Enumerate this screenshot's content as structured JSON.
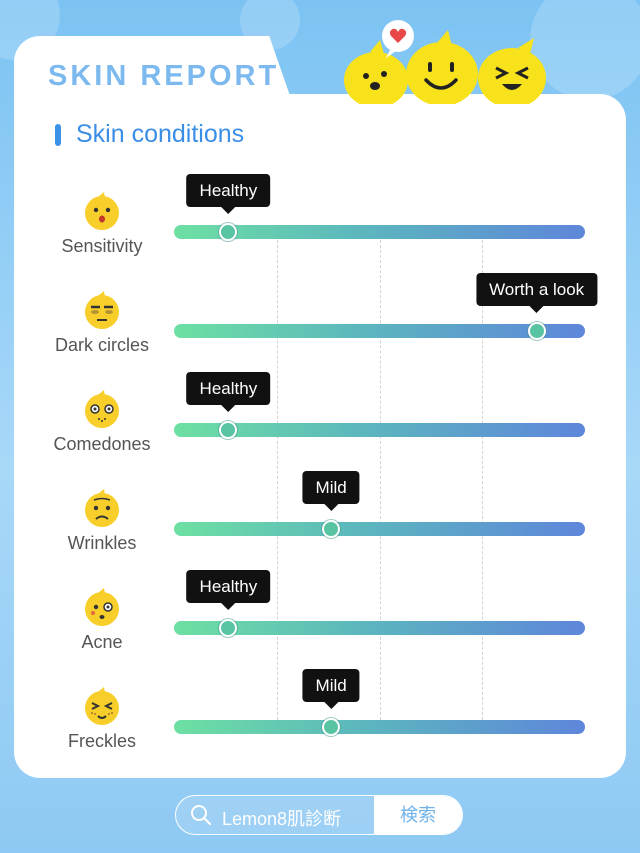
{
  "header": {
    "title": "SKIN REPORT",
    "section_title": "Skin conditions"
  },
  "conditions": [
    {
      "label": "Sensitivity",
      "status": "Healthy",
      "level": 0.125,
      "face": "surprised-face-icon"
    },
    {
      "label": "Dark circles",
      "status": "Worth a look",
      "level": 0.875,
      "face": "tired-face-icon"
    },
    {
      "label": "Comedones",
      "status": "Healthy",
      "level": 0.125,
      "face": "worried-face-icon"
    },
    {
      "label": "Wrinkles",
      "status": "Mild",
      "level": 0.375,
      "face": "frowning-face-icon"
    },
    {
      "label": "Acne",
      "status": "Healthy",
      "level": 0.125,
      "face": "pimple-face-icon"
    },
    {
      "label": "Freckles",
      "status": "Mild",
      "level": 0.375,
      "face": "freckles-face-icon"
    }
  ],
  "search": {
    "query": "Lemon8肌診断",
    "button_label": "検索"
  },
  "colors": {
    "title": "#7cb9ee",
    "accent": "#3a8ee6",
    "track_start": "#6de0a2",
    "track_end": "#5e86db",
    "tooltip": "#111111",
    "emoji": "#f8cf2a"
  }
}
